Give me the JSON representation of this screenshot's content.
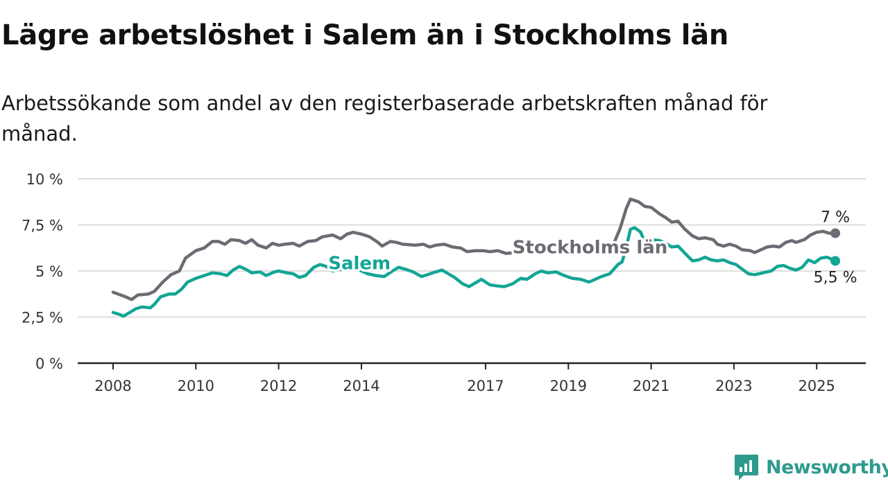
{
  "title": "Lägre arbetslöshet i Salem än i Stockholms län",
  "subtitle": "Arbetssökande som andel av den registerbaserade arbetskraften månad för månad.",
  "brand": {
    "name": "Newsworthy",
    "color": "#2e9a8f"
  },
  "colors": {
    "stockholm": "#6b6b73",
    "salem": "#13a595",
    "grid": "#dddddd",
    "axis": "#222222"
  },
  "chart_data": {
    "type": "line",
    "title": "Lägre arbetslöshet i Salem än i Stockholms län",
    "xlabel": "",
    "ylabel": "",
    "ylim": [
      0,
      10
    ],
    "xlim": [
      2008.0,
      2025.6
    ],
    "grid": true,
    "y_ticks": [
      {
        "value": 0,
        "label": "0 %"
      },
      {
        "value": 2.5,
        "label": "2,5 %"
      },
      {
        "value": 5,
        "label": "5 %"
      },
      {
        "value": 7.5,
        "label": "7,5 %"
      },
      {
        "value": 10,
        "label": "10 %"
      }
    ],
    "x_ticks": [
      {
        "value": 2008,
        "label": "2008"
      },
      {
        "value": 2010,
        "label": "2010"
      },
      {
        "value": 2012,
        "label": "2012"
      },
      {
        "value": 2014,
        "label": "2014"
      },
      {
        "value": 2017,
        "label": "2017"
      },
      {
        "value": 2019,
        "label": "2019"
      },
      {
        "value": 2021,
        "label": "2021"
      },
      {
        "value": 2023,
        "label": "2023"
      },
      {
        "value": 2025,
        "label": "2025"
      }
    ],
    "series": [
      {
        "name": "Stockholms län",
        "end_label": "7 %",
        "points": [
          [
            2008.0,
            3.85
          ],
          [
            2008.3,
            3.6
          ],
          [
            2008.45,
            3.45
          ],
          [
            2008.6,
            3.7
          ],
          [
            2008.85,
            3.75
          ],
          [
            2009.0,
            3.9
          ],
          [
            2009.2,
            4.4
          ],
          [
            2009.4,
            4.8
          ],
          [
            2009.6,
            5.0
          ],
          [
            2009.75,
            5.7
          ],
          [
            2010.0,
            6.1
          ],
          [
            2010.2,
            6.25
          ],
          [
            2010.4,
            6.6
          ],
          [
            2010.55,
            6.6
          ],
          [
            2010.7,
            6.45
          ],
          [
            2010.85,
            6.7
          ],
          [
            2011.05,
            6.65
          ],
          [
            2011.2,
            6.5
          ],
          [
            2011.35,
            6.7
          ],
          [
            2011.5,
            6.4
          ],
          [
            2011.7,
            6.25
          ],
          [
            2011.85,
            6.5
          ],
          [
            2012.0,
            6.4
          ],
          [
            2012.15,
            6.45
          ],
          [
            2012.35,
            6.5
          ],
          [
            2012.5,
            6.35
          ],
          [
            2012.7,
            6.6
          ],
          [
            2012.9,
            6.65
          ],
          [
            2013.05,
            6.85
          ],
          [
            2013.3,
            6.95
          ],
          [
            2013.5,
            6.75
          ],
          [
            2013.65,
            7.0
          ],
          [
            2013.8,
            7.1
          ],
          [
            2014.0,
            7.0
          ],
          [
            2014.2,
            6.85
          ],
          [
            2014.4,
            6.55
          ],
          [
            2014.5,
            6.35
          ],
          [
            2014.7,
            6.6
          ],
          [
            2014.85,
            6.55
          ],
          [
            2015.0,
            6.45
          ],
          [
            2015.3,
            6.4
          ],
          [
            2015.5,
            6.45
          ],
          [
            2015.65,
            6.3
          ],
          [
            2015.8,
            6.4
          ],
          [
            2016.0,
            6.45
          ],
          [
            2016.2,
            6.3
          ],
          [
            2016.4,
            6.25
          ],
          [
            2016.55,
            6.05
          ],
          [
            2016.75,
            6.1
          ],
          [
            2016.95,
            6.1
          ],
          [
            2017.1,
            6.05
          ],
          [
            2017.3,
            6.1
          ],
          [
            2017.5,
            5.95
          ],
          [
            2017.7,
            6.0
          ],
          [
            2017.9,
            6.15
          ],
          [
            2018.2,
            6.1
          ],
          [
            2018.5,
            6.05
          ],
          [
            2018.7,
            6.15
          ],
          [
            2019.0,
            6.0
          ],
          [
            2019.2,
            6.1
          ],
          [
            2019.5,
            5.95
          ],
          [
            2019.75,
            6.1
          ],
          [
            2020.0,
            6.2
          ],
          [
            2020.1,
            6.5
          ],
          [
            2020.25,
            7.3
          ],
          [
            2020.4,
            8.4
          ],
          [
            2020.5,
            8.9
          ],
          [
            2020.7,
            8.75
          ],
          [
            2020.85,
            8.5
          ],
          [
            2021.0,
            8.45
          ],
          [
            2021.2,
            8.1
          ],
          [
            2021.35,
            7.9
          ],
          [
            2021.5,
            7.65
          ],
          [
            2021.65,
            7.7
          ],
          [
            2021.8,
            7.3
          ],
          [
            2022.0,
            6.9
          ],
          [
            2022.15,
            6.75
          ],
          [
            2022.3,
            6.8
          ],
          [
            2022.5,
            6.7
          ],
          [
            2022.6,
            6.45
          ],
          [
            2022.75,
            6.35
          ],
          [
            2022.9,
            6.45
          ],
          [
            2023.05,
            6.35
          ],
          [
            2023.2,
            6.15
          ],
          [
            2023.4,
            6.1
          ],
          [
            2023.5,
            6.0
          ],
          [
            2023.65,
            6.15
          ],
          [
            2023.8,
            6.3
          ],
          [
            2023.95,
            6.35
          ],
          [
            2024.1,
            6.3
          ],
          [
            2024.25,
            6.55
          ],
          [
            2024.4,
            6.65
          ],
          [
            2024.5,
            6.55
          ],
          [
            2024.7,
            6.7
          ],
          [
            2024.85,
            6.95
          ],
          [
            2025.0,
            7.1
          ],
          [
            2025.15,
            7.15
          ],
          [
            2025.3,
            7.05
          ],
          [
            2025.45,
            7.05
          ]
        ]
      },
      {
        "name": "Salem",
        "end_label": "5,5 %",
        "points": [
          [
            2008.0,
            2.75
          ],
          [
            2008.15,
            2.65
          ],
          [
            2008.25,
            2.55
          ],
          [
            2008.4,
            2.75
          ],
          [
            2008.55,
            2.95
          ],
          [
            2008.7,
            3.05
          ],
          [
            2008.9,
            3.0
          ],
          [
            2009.0,
            3.2
          ],
          [
            2009.15,
            3.6
          ],
          [
            2009.35,
            3.75
          ],
          [
            2009.5,
            3.75
          ],
          [
            2009.65,
            4.0
          ],
          [
            2009.8,
            4.4
          ],
          [
            2010.0,
            4.6
          ],
          [
            2010.2,
            4.75
          ],
          [
            2010.4,
            4.9
          ],
          [
            2010.6,
            4.85
          ],
          [
            2010.75,
            4.75
          ],
          [
            2010.9,
            5.05
          ],
          [
            2011.05,
            5.25
          ],
          [
            2011.2,
            5.1
          ],
          [
            2011.35,
            4.9
          ],
          [
            2011.55,
            4.95
          ],
          [
            2011.7,
            4.75
          ],
          [
            2011.9,
            4.95
          ],
          [
            2012.0,
            5.0
          ],
          [
            2012.2,
            4.9
          ],
          [
            2012.35,
            4.85
          ],
          [
            2012.5,
            4.65
          ],
          [
            2012.65,
            4.75
          ],
          [
            2012.85,
            5.2
          ],
          [
            2013.0,
            5.35
          ],
          [
            2013.15,
            5.25
          ],
          [
            2013.3,
            5.0
          ],
          [
            2013.55,
            5.1
          ],
          [
            2013.75,
            5.2
          ],
          [
            2013.95,
            5.05
          ],
          [
            2014.15,
            4.85
          ],
          [
            2014.35,
            4.75
          ],
          [
            2014.55,
            4.7
          ],
          [
            2014.75,
            5.0
          ],
          [
            2014.9,
            5.2
          ],
          [
            2015.05,
            5.1
          ],
          [
            2015.25,
            4.95
          ],
          [
            2015.45,
            4.7
          ],
          [
            2015.6,
            4.8
          ],
          [
            2015.8,
            4.95
          ],
          [
            2015.95,
            5.05
          ],
          [
            2016.1,
            4.85
          ],
          [
            2016.25,
            4.65
          ],
          [
            2016.45,
            4.3
          ],
          [
            2016.6,
            4.15
          ],
          [
            2016.75,
            4.35
          ],
          [
            2016.9,
            4.55
          ],
          [
            2017.1,
            4.25
          ],
          [
            2017.25,
            4.2
          ],
          [
            2017.45,
            4.15
          ],
          [
            2017.65,
            4.3
          ],
          [
            2017.85,
            4.6
          ],
          [
            2018.0,
            4.55
          ],
          [
            2018.2,
            4.85
          ],
          [
            2018.35,
            5.0
          ],
          [
            2018.5,
            4.9
          ],
          [
            2018.7,
            4.95
          ],
          [
            2018.9,
            4.75
          ],
          [
            2019.1,
            4.6
          ],
          [
            2019.3,
            4.55
          ],
          [
            2019.5,
            4.4
          ],
          [
            2019.65,
            4.55
          ],
          [
            2019.8,
            4.7
          ],
          [
            2020.0,
            4.85
          ],
          [
            2020.1,
            5.1
          ],
          [
            2020.2,
            5.35
          ],
          [
            2020.3,
            5.5
          ],
          [
            2020.4,
            6.3
          ],
          [
            2020.5,
            7.25
          ],
          [
            2020.6,
            7.35
          ],
          [
            2020.75,
            7.1
          ],
          [
            2020.85,
            6.5
          ],
          [
            2021.0,
            6.7
          ],
          [
            2021.2,
            6.65
          ],
          [
            2021.35,
            6.5
          ],
          [
            2021.5,
            6.3
          ],
          [
            2021.65,
            6.35
          ],
          [
            2021.8,
            6.0
          ],
          [
            2022.0,
            5.55
          ],
          [
            2022.15,
            5.6
          ],
          [
            2022.3,
            5.75
          ],
          [
            2022.45,
            5.6
          ],
          [
            2022.6,
            5.55
          ],
          [
            2022.75,
            5.6
          ],
          [
            2022.9,
            5.45
          ],
          [
            2023.05,
            5.35
          ],
          [
            2023.2,
            5.1
          ],
          [
            2023.35,
            4.85
          ],
          [
            2023.5,
            4.8
          ],
          [
            2023.7,
            4.9
          ],
          [
            2023.9,
            5.0
          ],
          [
            2024.05,
            5.25
          ],
          [
            2024.2,
            5.3
          ],
          [
            2024.35,
            5.15
          ],
          [
            2024.5,
            5.05
          ],
          [
            2024.65,
            5.2
          ],
          [
            2024.8,
            5.6
          ],
          [
            2024.95,
            5.45
          ],
          [
            2025.1,
            5.7
          ],
          [
            2025.25,
            5.75
          ],
          [
            2025.35,
            5.65
          ],
          [
            2025.45,
            5.55
          ]
        ]
      }
    ]
  }
}
